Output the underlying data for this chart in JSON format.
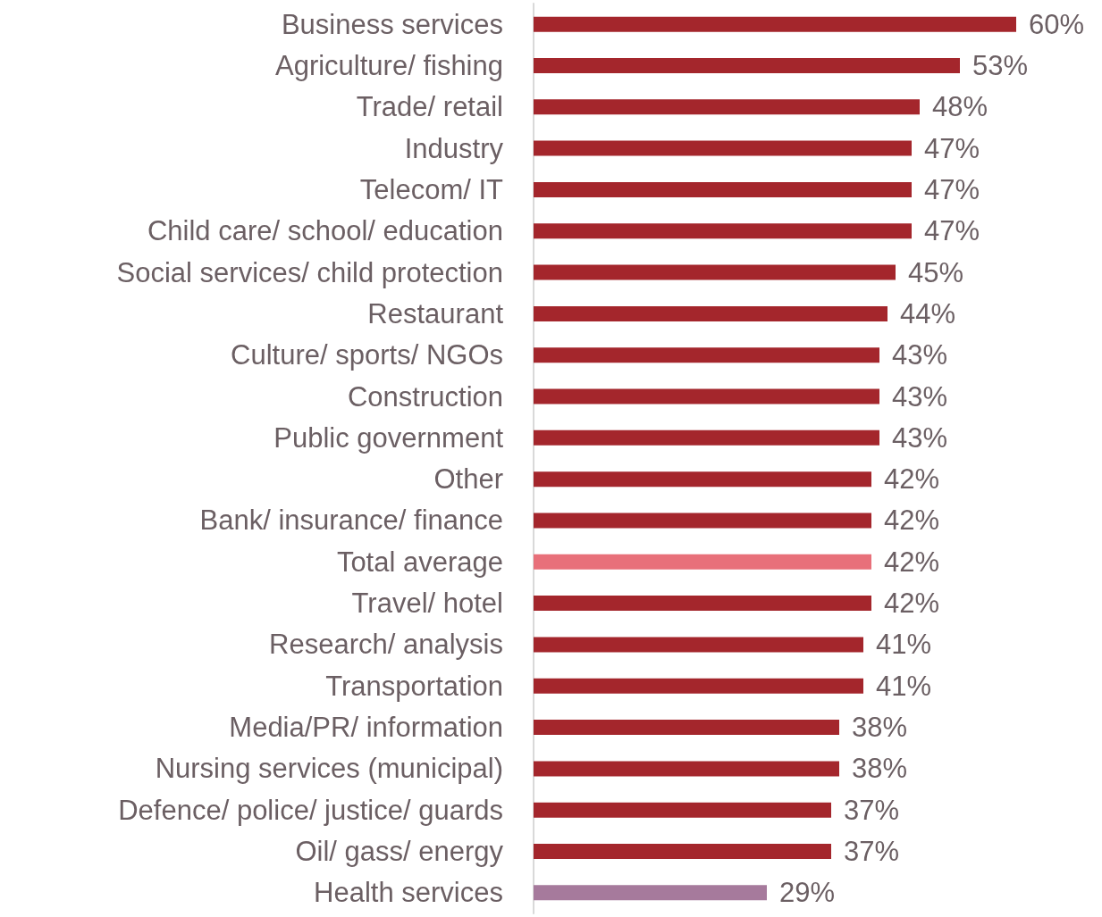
{
  "chart_data": {
    "type": "bar",
    "orientation": "horizontal",
    "categories": [
      "Business services",
      "Agriculture/ fishing",
      "Trade/ retail",
      "Industry",
      "Telecom/ IT",
      "Child care/ school/ education",
      "Social services/ child protection",
      "Restaurant",
      "Culture/ sports/ NGOs",
      "Construction",
      "Public government",
      "Other",
      "Bank/ insurance/ finance",
      "Total average",
      "Travel/ hotel",
      "Research/ analysis",
      "Transportation",
      "Media/PR/ information",
      "Nursing services (municipal)",
      "Defence/ police/ justice/ guards",
      "Oil/ gass/ energy",
      "Health services"
    ],
    "values": [
      60,
      53,
      48,
      47,
      47,
      47,
      45,
      44,
      43,
      43,
      43,
      42,
      42,
      42,
      42,
      41,
      41,
      38,
      38,
      37,
      37,
      29
    ],
    "value_labels": [
      "60%",
      "53%",
      "48%",
      "47%",
      "47%",
      "47%",
      "45%",
      "44%",
      "43%",
      "43%",
      "43%",
      "42%",
      "42%",
      "42%",
      "42%",
      "41%",
      "41%",
      "38%",
      "38%",
      "37%",
      "37%",
      "29%"
    ],
    "colors": [
      "#a4262c",
      "#a4262c",
      "#a4262c",
      "#a4262c",
      "#a4262c",
      "#a4262c",
      "#a4262c",
      "#a4262c",
      "#a4262c",
      "#a4262c",
      "#a4262c",
      "#a4262c",
      "#a4262c",
      "#e8707a",
      "#a4262c",
      "#a4262c",
      "#a4262c",
      "#a4262c",
      "#a4262c",
      "#a4262c",
      "#a4262c",
      "#a67a9c"
    ],
    "grid": false
  }
}
